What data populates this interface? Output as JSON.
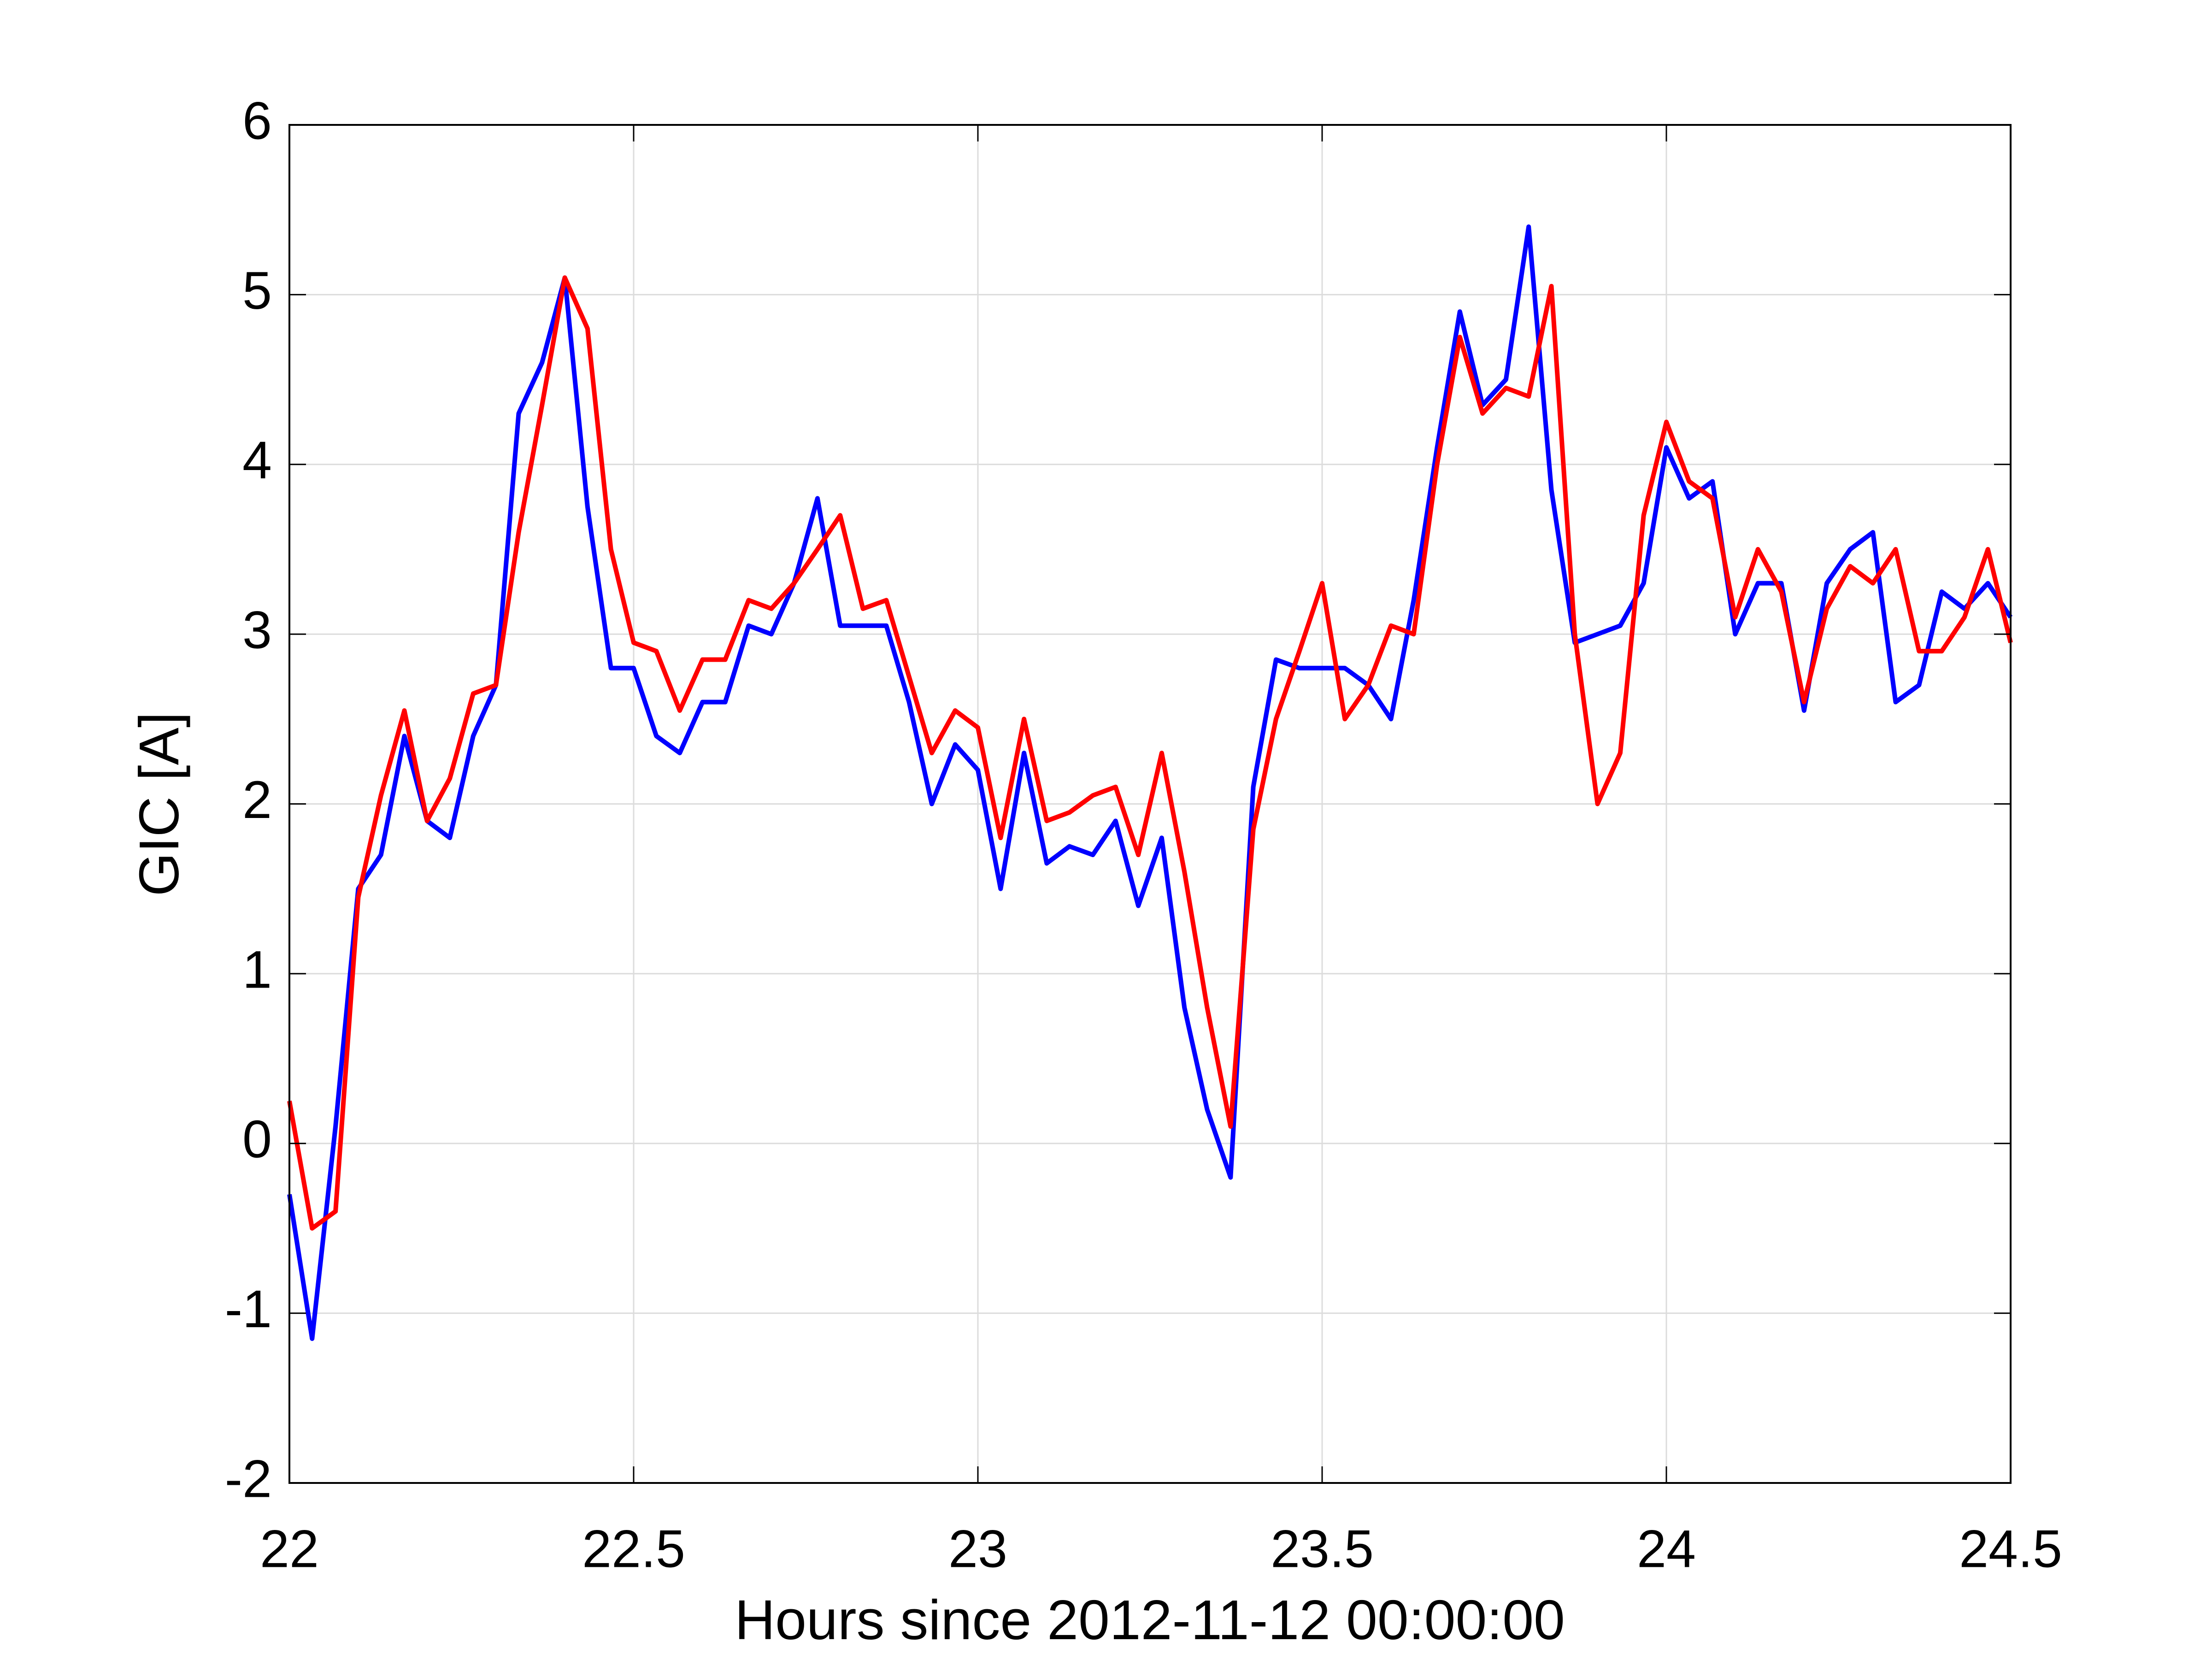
{
  "chart_data": {
    "type": "line",
    "xlabel": "Hours since 2012-11-12 00:00:00",
    "ylabel": "GIC [A]",
    "x": [
      22,
      22.033,
      22.067,
      22.1,
      22.133,
      22.167,
      22.2,
      22.233,
      22.267,
      22.3,
      22.333,
      22.367,
      22.4,
      22.433,
      22.467,
      22.5,
      22.533,
      22.567,
      22.6,
      22.633,
      22.667,
      22.7,
      22.733,
      22.767,
      22.8,
      22.833,
      22.867,
      22.9,
      22.933,
      22.967,
      23,
      23.033,
      23.067,
      23.1,
      23.133,
      23.167,
      23.2,
      23.233,
      23.267,
      23.3,
      23.333,
      23.367,
      23.4,
      23.433,
      23.467,
      23.5,
      23.533,
      23.567,
      23.6,
      23.633,
      23.667,
      23.7,
      23.733,
      23.767,
      23.8,
      23.833,
      23.867,
      23.9,
      23.933,
      23.967,
      24,
      24.033,
      24.067,
      24.1,
      24.133,
      24.167,
      24.2,
      24.233,
      24.267,
      24.3,
      24.333,
      24.367,
      24.4,
      24.433,
      24.467,
      24.5
    ],
    "series": [
      {
        "color": "#0000ff",
        "values": [
          -0.3,
          -1.15,
          0.1,
          1.5,
          1.7,
          2.4,
          1.9,
          1.8,
          2.4,
          2.7,
          4.3,
          4.6,
          5.1,
          3.75,
          2.8,
          2.8,
          2.4,
          2.3,
          2.6,
          2.6,
          3.05,
          3.0,
          3.3,
          3.8,
          3.05,
          3.05,
          3.05,
          2.6,
          2.0,
          2.35,
          2.2,
          1.5,
          2.3,
          1.65,
          1.75,
          1.7,
          1.9,
          1.4,
          1.8,
          0.8,
          0.2,
          -0.2,
          2.1,
          2.85,
          2.8,
          2.8,
          2.8,
          2.7,
          2.5,
          3.2,
          4.1,
          4.9,
          4.35,
          4.5,
          5.4,
          3.85,
          2.95,
          3.0,
          3.05,
          3.3,
          4.1,
          3.8,
          3.9,
          3.0,
          3.3,
          3.3,
          2.55,
          3.3,
          3.5,
          3.6,
          2.6,
          2.7,
          3.25,
          3.15,
          3.3,
          3.1
        ]
      },
      {
        "color": "#ff0000",
        "values": [
          0.25,
          -0.5,
          -0.4,
          1.45,
          2.05,
          2.55,
          1.9,
          2.15,
          2.65,
          2.7,
          3.6,
          4.35,
          5.1,
          4.8,
          3.5,
          2.95,
          2.9,
          2.55,
          2.85,
          2.85,
          3.2,
          3.15,
          3.3,
          3.5,
          3.7,
          3.15,
          3.2,
          2.75,
          2.3,
          2.55,
          2.45,
          1.8,
          2.5,
          1.9,
          1.95,
          2.05,
          2.1,
          1.7,
          2.3,
          1.6,
          0.8,
          0.1,
          1.85,
          2.5,
          2.9,
          3.3,
          2.5,
          2.7,
          3.05,
          3.0,
          4.0,
          4.75,
          4.3,
          4.45,
          4.4,
          5.05,
          3.0,
          2.0,
          2.3,
          3.7,
          4.25,
          3.9,
          3.8,
          3.1,
          3.5,
          3.25,
          2.6,
          3.15,
          3.4,
          3.3,
          3.5,
          2.9,
          2.9,
          3.1,
          3.5,
          2.95
        ]
      }
    ],
    "xlim": [
      22,
      24.5
    ],
    "xticks": [
      22,
      22.5,
      23,
      23.5,
      24,
      24.5
    ],
    "ylim": [
      -2,
      6
    ],
    "yticks": [
      -2,
      -1,
      0,
      1,
      2,
      3,
      4,
      5,
      6
    ],
    "grid": true
  }
}
